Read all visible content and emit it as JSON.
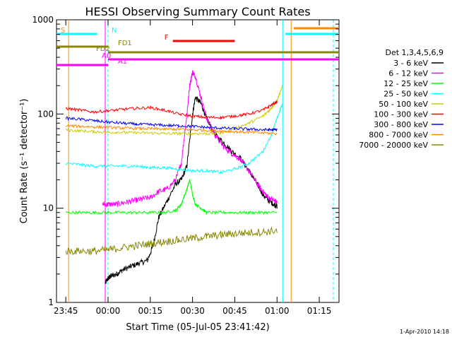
{
  "chart_data": {
    "type": "line",
    "title": "HESSI Observing Summary Count Rates",
    "xlabel": "Start Time (05-Jul-05 23:41:42)",
    "ylabel": "Count Rate (s⁻¹ detector⁻¹)",
    "yscale": "log",
    "xlim": [
      "23:41:42",
      "01:22"
    ],
    "ylim": [
      1,
      1000
    ],
    "x_ticks": [
      "23:45",
      "00:00",
      "00:15",
      "00:30",
      "00:45",
      "01:00",
      "01:15"
    ],
    "y_ticks": [
      "1",
      "10",
      "100",
      "1000"
    ],
    "footer": "1-Apr-2010 14:18",
    "legend_title": "Det 1,3,4,5,6,9",
    "legend_position": "right",
    "series": [
      {
        "name": "3 - 6 keV",
        "color": "#000000",
        "x": [
          "23:47",
          "23:58",
          "23:59",
          "00:00",
          "00:01",
          "00:03",
          "00:05",
          "00:08",
          "00:11",
          "00:14",
          "00:16",
          "00:18",
          "00:21",
          "00:24",
          "00:26",
          "00:28",
          "00:30",
          "00:31",
          "00:33",
          "00:35",
          "00:38",
          "00:41",
          "00:44",
          "00:47",
          "00:50",
          "00:53",
          "00:55",
          "00:57",
          "00:59",
          "01:00"
        ],
        "values": [
          null,
          null,
          1.6,
          1.8,
          1.9,
          2.0,
          2.2,
          2.4,
          2.6,
          2.8,
          4.0,
          8.0,
          12,
          18,
          20,
          28,
          100,
          150,
          130,
          90,
          60,
          50,
          40,
          34,
          25,
          18,
          14,
          12,
          11,
          10.5
        ]
      },
      {
        "name": "6 - 12 keV",
        "color": "#ff00ff",
        "x": [
          "23:58",
          "00:00",
          "00:03",
          "00:06",
          "00:09",
          "00:12",
          "00:15",
          "00:18",
          "00:21",
          "00:24",
          "00:26",
          "00:28",
          "00:29",
          "00:30",
          "00:31",
          "00:33",
          "00:35",
          "00:38",
          "00:41",
          "00:44",
          "00:47",
          "00:50",
          "00:53",
          "00:55",
          "00:57",
          "00:59",
          "01:00"
        ],
        "values": [
          11,
          11,
          11,
          11.5,
          12,
          12.5,
          13,
          15,
          16,
          20,
          30,
          100,
          200,
          280,
          250,
          150,
          90,
          60,
          45,
          38,
          33,
          25,
          18,
          15,
          13,
          12,
          11.5
        ]
      },
      {
        "name": "12 - 25 keV",
        "color": "#00ff00",
        "x": [
          "23:45",
          "23:50",
          "23:55",
          "00:00",
          "00:05",
          "00:10",
          "00:15",
          "00:20",
          "00:24",
          "00:26",
          "00:28",
          "00:29",
          "00:30",
          "00:31",
          "00:33",
          "00:35",
          "00:40",
          "00:45",
          "00:50",
          "00:55",
          "01:00"
        ],
        "values": [
          9,
          9,
          9,
          9,
          9,
          9,
          9,
          9,
          9.5,
          11,
          16,
          20,
          14,
          11,
          10,
          9,
          9,
          9,
          9,
          9,
          9
        ]
      },
      {
        "name": "25 - 50 keV",
        "color": "#00ffff",
        "x": [
          "23:45",
          "23:50",
          "23:55",
          "00:00",
          "00:05",
          "00:10",
          "00:15",
          "00:20",
          "00:25",
          "00:30",
          "00:35",
          "00:40",
          "00:45",
          "00:50",
          "00:55",
          "00:58",
          "01:00",
          "01:02"
        ],
        "values": [
          30,
          29,
          28,
          28,
          28,
          28,
          27,
          27,
          26,
          25,
          25,
          24,
          26,
          30,
          40,
          60,
          90,
          130
        ]
      },
      {
        "name": "50 - 100 keV",
        "color": "#cccc00",
        "x": [
          "23:45",
          "23:50",
          "23:55",
          "00:00",
          "00:05",
          "00:10",
          "00:15",
          "00:20",
          "00:25",
          "00:30",
          "00:35",
          "00:40",
          "00:45",
          "00:50",
          "00:55",
          "00:58",
          "01:00",
          "01:02"
        ],
        "values": [
          68,
          66,
          65,
          64,
          64,
          63,
          63,
          62,
          62,
          62,
          62,
          63,
          70,
          80,
          95,
          115,
          140,
          200
        ]
      },
      {
        "name": "100 - 300 keV",
        "color": "#ff0000",
        "x": [
          "23:45",
          "23:50",
          "23:55",
          "00:00",
          "00:05",
          "00:10",
          "00:15",
          "00:20",
          "00:25",
          "00:30",
          "00:35",
          "00:40",
          "00:45",
          "00:50",
          "00:55",
          "00:58",
          "01:00"
        ],
        "values": [
          115,
          110,
          105,
          108,
          112,
          115,
          117,
          110,
          100,
          95,
          92,
          92,
          95,
          100,
          110,
          125,
          135
        ]
      },
      {
        "name": "300 - 800 keV",
        "color": "#0000ff",
        "x": [
          "23:45",
          "23:50",
          "23:55",
          "00:00",
          "00:05",
          "00:10",
          "00:15",
          "00:20",
          "00:25",
          "00:30",
          "00:35",
          "00:40",
          "00:45",
          "00:50",
          "00:55",
          "00:58",
          "01:00"
        ],
        "values": [
          90,
          88,
          85,
          82,
          80,
          78,
          77,
          76,
          75,
          74,
          72,
          71,
          70,
          69,
          68,
          68,
          68
        ]
      },
      {
        "name": "800 - 7000 keV",
        "color": "#ff8800",
        "x": [
          "23:45",
          "23:50",
          "23:55",
          "00:00",
          "00:05",
          "00:10",
          "00:15",
          "00:20",
          "00:25",
          "00:30",
          "00:35",
          "00:40",
          "00:45",
          "00:50",
          "00:55",
          "01:00"
        ],
        "values": [
          75,
          74,
          73,
          72,
          71,
          70,
          70,
          69,
          69,
          68,
          67,
          66,
          65,
          64,
          63,
          62
        ]
      },
      {
        "name": "7000 - 20000 keV",
        "color": "#888800",
        "x": [
          "23:45",
          "23:50",
          "23:55",
          "00:00",
          "00:05",
          "00:10",
          "00:15",
          "00:20",
          "00:25",
          "00:30",
          "00:35",
          "00:40",
          "00:45",
          "00:50",
          "00:55",
          "01:00"
        ],
        "values": [
          3.5,
          3.5,
          3.5,
          3.6,
          3.8,
          4.0,
          4.2,
          4.4,
          4.6,
          4.8,
          5.0,
          5.2,
          5.4,
          5.5,
          5.6,
          5.8
        ]
      }
    ],
    "flags": [
      {
        "label": "S",
        "color": "#ff8800",
        "start": "23:41:42",
        "end": null
      },
      {
        "label": "N",
        "color": "#00ffff",
        "start": "23:41:42",
        "end": "23:56"
      },
      {
        "label": "FD1",
        "color": "#888800",
        "start": "23:41:42",
        "end": "00:00"
      },
      {
        "label": "F",
        "color": "#ff0000",
        "start": "00:23",
        "end": "00:45"
      },
      {
        "label": "FD2",
        "color": "#888800",
        "start": "00:00",
        "end": "01:22"
      },
      {
        "label": "A0",
        "color": "#ff00ff",
        "start": "00:00",
        "end": "01:22"
      },
      {
        "label": "A1",
        "color": "#ff00ff",
        "start": "23:41:42",
        "end": "00:00"
      }
    ],
    "flags_right": [
      {
        "label": "",
        "color": "#ff8800",
        "start": "01:06",
        "end": "01:22"
      },
      {
        "label": "",
        "color": "#00ffff",
        "start": "01:03",
        "end": "01:22"
      }
    ]
  }
}
